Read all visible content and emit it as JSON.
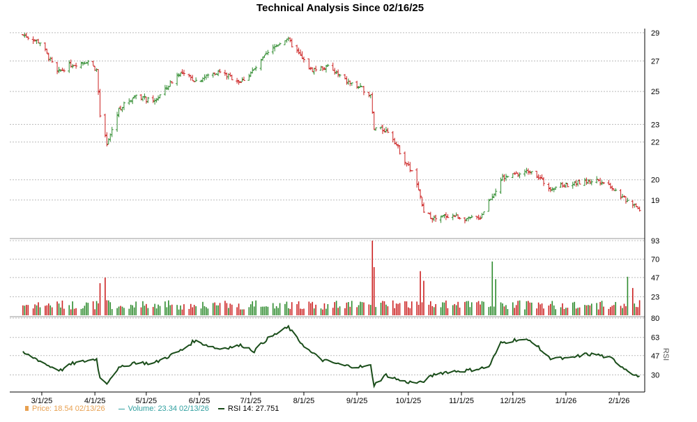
{
  "chart_data": {
    "type": "candlestick-volume-rsi",
    "title": "Technical Analysis Since 02/16/25",
    "x_tick_labels": [
      "3/1/25",
      "4/1/25",
      "5/1/25",
      "6/1/25",
      "7/1/25",
      "8/1/25",
      "9/1/25",
      "10/1/25",
      "11/1/25",
      "12/1/25",
      "1/1/26",
      "2/1/26"
    ],
    "price_axis": {
      "ticks": [
        29,
        27,
        25,
        23,
        22,
        20,
        19
      ],
      "ylim": [
        17.3,
        29.3
      ]
    },
    "volume_axis": {
      "ticks": [
        93,
        70,
        47,
        23
      ],
      "ylim": [
        0,
        93
      ]
    },
    "rsi_axis": {
      "ticks": [
        80,
        63,
        47,
        30
      ],
      "ylim": [
        18,
        80
      ],
      "label": "RSI"
    },
    "colors": {
      "up": "#2e8b2e",
      "down": "#cc2222",
      "rsi": "#1a4d1a",
      "grid": "#bbbbbb",
      "price_legend": "#e8a050",
      "volume_legend": "#30a0a0"
    },
    "price_keypoints": [
      [
        "2025-02-17",
        28.9
      ],
      [
        "2025-02-28",
        28.3
      ],
      [
        "2025-03-10",
        26.2
      ],
      [
        "2025-03-17",
        26.7
      ],
      [
        "2025-03-28",
        27.0
      ],
      [
        "2025-04-02",
        26.4
      ],
      [
        "2025-04-04",
        23.5
      ],
      [
        "2025-04-08",
        21.8
      ],
      [
        "2025-04-15",
        23.9
      ],
      [
        "2025-04-25",
        24.8
      ],
      [
        "2025-05-05",
        24.3
      ],
      [
        "2025-05-12",
        25.1
      ],
      [
        "2025-05-20",
        26.2
      ],
      [
        "2025-05-30",
        25.7
      ],
      [
        "2025-06-12",
        26.3
      ],
      [
        "2025-06-25",
        25.6
      ],
      [
        "2025-07-03",
        26.4
      ],
      [
        "2025-07-10",
        27.4
      ],
      [
        "2025-07-17",
        28.2
      ],
      [
        "2025-07-22",
        28.6
      ],
      [
        "2025-07-30",
        27.3
      ],
      [
        "2025-08-05",
        26.4
      ],
      [
        "2025-08-15",
        26.6
      ],
      [
        "2025-08-25",
        25.7
      ],
      [
        "2025-09-05",
        25.1
      ],
      [
        "2025-09-09",
        24.8
      ],
      [
        "2025-09-11",
        22.8
      ],
      [
        "2025-09-20",
        22.6
      ],
      [
        "2025-09-27",
        21.3
      ],
      [
        "2025-10-05",
        20.1
      ],
      [
        "2025-10-10",
        18.4
      ],
      [
        "2025-10-17",
        18.1
      ],
      [
        "2025-10-25",
        18.3
      ],
      [
        "2025-11-05",
        18.1
      ],
      [
        "2025-11-12",
        18.2
      ],
      [
        "2025-11-18",
        19.1
      ],
      [
        "2025-11-25",
        20.1
      ],
      [
        "2025-12-05",
        20.3
      ],
      [
        "2025-12-12",
        20.5
      ],
      [
        "2025-12-22",
        19.6
      ],
      [
        "2026-01-05",
        19.8
      ],
      [
        "2026-01-12",
        19.9
      ],
      [
        "2026-01-20",
        20.0
      ],
      [
        "2026-01-27",
        19.7
      ],
      [
        "2026-02-03",
        19.1
      ],
      [
        "2026-02-08",
        18.9
      ],
      [
        "2026-02-13",
        18.54
      ]
    ],
    "volume_spikes": [
      [
        "2025-04-04",
        40
      ],
      [
        "2025-04-07",
        47
      ],
      [
        "2025-09-10",
        93
      ],
      [
        "2025-09-11",
        60
      ],
      [
        "2025-10-08",
        55
      ],
      [
        "2025-10-10",
        43
      ],
      [
        "2025-11-19",
        67
      ],
      [
        "2025-11-21",
        45
      ],
      [
        "2026-02-06",
        48
      ],
      [
        "2026-02-09",
        34
      ]
    ],
    "volume_baseline": 13,
    "rsi_keypoints": [
      [
        "2025-02-17",
        50
      ],
      [
        "2025-02-26",
        44
      ],
      [
        "2025-03-05",
        38
      ],
      [
        "2025-03-12",
        34
      ],
      [
        "2025-03-19",
        40
      ],
      [
        "2025-03-26",
        42
      ],
      [
        "2025-04-02",
        44
      ],
      [
        "2025-04-04",
        27
      ],
      [
        "2025-04-08",
        23
      ],
      [
        "2025-04-14",
        35
      ],
      [
        "2025-04-24",
        41
      ],
      [
        "2025-05-05",
        40
      ],
      [
        "2025-05-15",
        47
      ],
      [
        "2025-05-22",
        52
      ],
      [
        "2025-05-29",
        60
      ],
      [
        "2025-06-12",
        53
      ],
      [
        "2025-06-26",
        56
      ],
      [
        "2025-07-03",
        51
      ],
      [
        "2025-07-10",
        61
      ],
      [
        "2025-07-17",
        67
      ],
      [
        "2025-07-23",
        72
      ],
      [
        "2025-07-28",
        62
      ],
      [
        "2025-08-05",
        50
      ],
      [
        "2025-08-12",
        43
      ],
      [
        "2025-08-25",
        38
      ],
      [
        "2025-09-05",
        37
      ],
      [
        "2025-09-09",
        38
      ],
      [
        "2025-09-11",
        21
      ],
      [
        "2025-09-18",
        30
      ],
      [
        "2025-09-28",
        24
      ],
      [
        "2025-10-08",
        23
      ],
      [
        "2025-10-17",
        31
      ],
      [
        "2025-10-25",
        33
      ],
      [
        "2025-11-05",
        34
      ],
      [
        "2025-11-17",
        37
      ],
      [
        "2025-11-24",
        58
      ],
      [
        "2025-12-03",
        61
      ],
      [
        "2025-12-12",
        60
      ],
      [
        "2025-12-22",
        45
      ],
      [
        "2026-01-02",
        44
      ],
      [
        "2026-01-12",
        48
      ],
      [
        "2026-01-19",
        48
      ],
      [
        "2026-01-28",
        44
      ],
      [
        "2026-02-04",
        36
      ],
      [
        "2026-02-13",
        27.751
      ]
    ]
  },
  "legend": {
    "price_label": "Price: 18.54  02/13/26",
    "volume_label": "Volume: 23.34  02/13/26",
    "rsi_label": "RSI 14: 27.751"
  }
}
